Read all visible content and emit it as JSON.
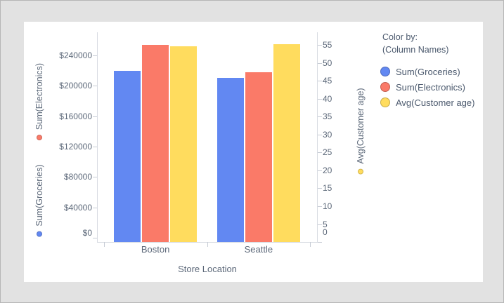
{
  "colors": {
    "page_background": "#e2e2e2",
    "panel_background": "#ffffff",
    "axis_line": "#d8dbe2",
    "tick_text": "#5c6879",
    "series_blue": "#6288F2",
    "series_red": "#FA7A68",
    "series_yellow": "#FFDC5E"
  },
  "chart_data": {
    "type": "bar",
    "categories": [
      "Boston",
      "Seattle"
    ],
    "series": [
      {
        "name": "Sum(Groceries)",
        "axis": "left",
        "color": "#6288F2",
        "values": [
          220000,
          211000
        ]
      },
      {
        "name": "Sum(Electronics)",
        "axis": "left",
        "color": "#FA7A68",
        "values": [
          254000,
          218000
        ]
      },
      {
        "name": "Avg(Customer age)",
        "axis": "right",
        "color": "#FFDC5E",
        "values": [
          54.7,
          55.2
        ]
      }
    ],
    "x_axis": {
      "title": "Store Location",
      "tick_labels": [
        "Boston",
        "Seattle"
      ]
    },
    "left_axis": {
      "titles": [
        {
          "label": "Sum(Electronics)",
          "dot_color": "#FA7A68"
        },
        {
          "label": "Sum(Groceries)",
          "dot_color": "#6288F2"
        }
      ],
      "tick_labels": [
        "$240000",
        "$200000",
        "$160000",
        "$120000",
        "$80000",
        "$40000",
        "$0"
      ],
      "range": [
        0,
        240000
      ]
    },
    "right_axis": {
      "title": "Avg(Customer age)",
      "dot_color": "#FFDC5E",
      "tick_labels": [
        "55",
        "50",
        "45",
        "40",
        "35",
        "30",
        "25",
        "20",
        "15",
        "10",
        "5",
        "0"
      ],
      "range": [
        0,
        55
      ]
    },
    "grid": false,
    "legend_position": "right"
  },
  "legend": {
    "header": "Color by:",
    "subheader": "(Column Names)",
    "items": [
      {
        "label": "Sum(Groceries)",
        "color": "#6288F2"
      },
      {
        "label": "Sum(Electronics)",
        "color": "#FA7A68"
      },
      {
        "label": "Avg(Customer age)",
        "color": "#FFDC5E"
      }
    ]
  }
}
